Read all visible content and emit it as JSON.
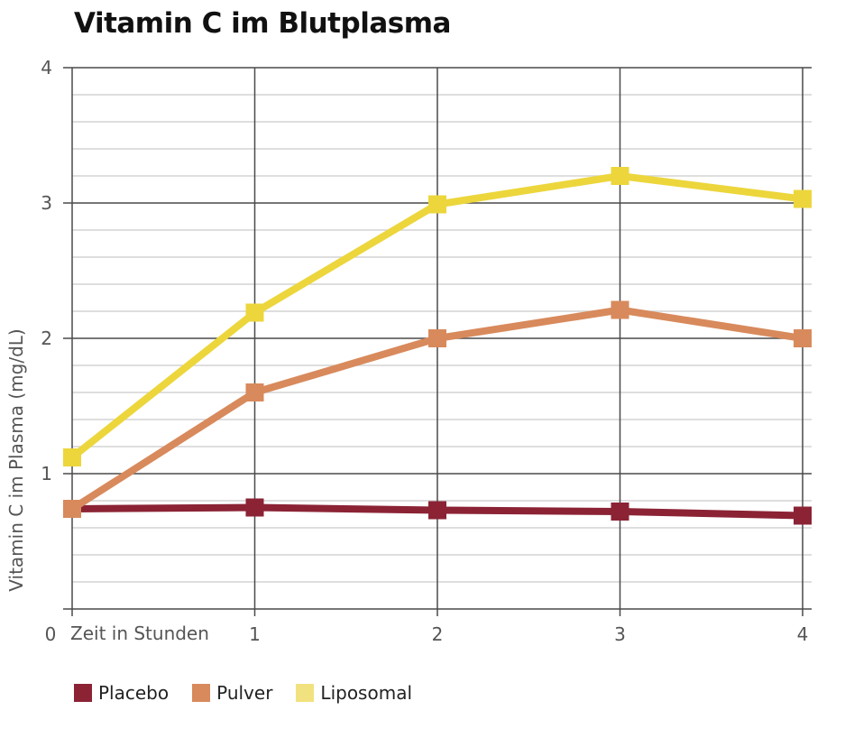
{
  "chart_data": {
    "type": "line",
    "title": "Vitamin C im Blutplasma",
    "xlabel": "Zeit in Stunden",
    "ylabel": "Vitamin C im Plasma (mg/dL)",
    "x": [
      0,
      1,
      2,
      3,
      4
    ],
    "xlim": [
      0,
      4
    ],
    "ylim": [
      0,
      4
    ],
    "xticks": [
      0,
      1,
      2,
      3,
      4
    ],
    "yticks": [
      0,
      1,
      2,
      3,
      4
    ],
    "y_minor_step": 0.2,
    "grid": true,
    "legend_position": "bottom-left",
    "series": [
      {
        "name": "Placebo",
        "color": "#8B2335",
        "marker": "square",
        "values": [
          0.74,
          0.75,
          0.73,
          0.72,
          0.69
        ]
      },
      {
        "name": "Pulver",
        "color": "#D88A5C",
        "marker": "square",
        "values": [
          0.74,
          1.6,
          2.0,
          2.21,
          2.0
        ]
      },
      {
        "name": "Liposomal",
        "color": "#ECD63C",
        "legend_color": "#F2E27F",
        "marker": "square",
        "values": [
          1.12,
          2.19,
          2.99,
          3.2,
          3.03
        ]
      }
    ]
  }
}
